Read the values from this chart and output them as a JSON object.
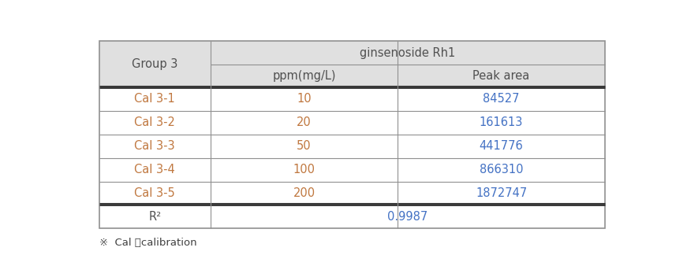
{
  "title": "ginsenoside Rh1",
  "group_label": "Group 3",
  "col1_header": "ppm(mg/L)",
  "col2_header": "Peak area",
  "rows": [
    {
      "label": "Cal 3-1",
      "ppm": "10",
      "peak": "84527"
    },
    {
      "label": "Cal 3-2",
      "ppm": "20",
      "peak": "161613"
    },
    {
      "label": "Cal 3-3",
      "ppm": "50",
      "peak": "441776"
    },
    {
      "label": "Cal 3-4",
      "ppm": "100",
      "peak": "866310"
    },
    {
      "label": "Cal 3-5",
      "ppm": "200",
      "peak": "1872747"
    }
  ],
  "r2_label": "R²",
  "r2_value": "0.9987",
  "footnote": "※  Cal ：calibration",
  "header_bg": "#e0e0e0",
  "data_bg": "#ffffff",
  "text_color_label": "#c07840",
  "text_color_ppm": "#c07840",
  "text_color_peak": "#4472c4",
  "text_color_header": "#505050",
  "text_color_r2_label": "#505050",
  "text_color_r2_value": "#4472c4",
  "border_color": "#909090",
  "thick_line_color": "#303030",
  "fig_width": 8.71,
  "fig_height": 3.38
}
